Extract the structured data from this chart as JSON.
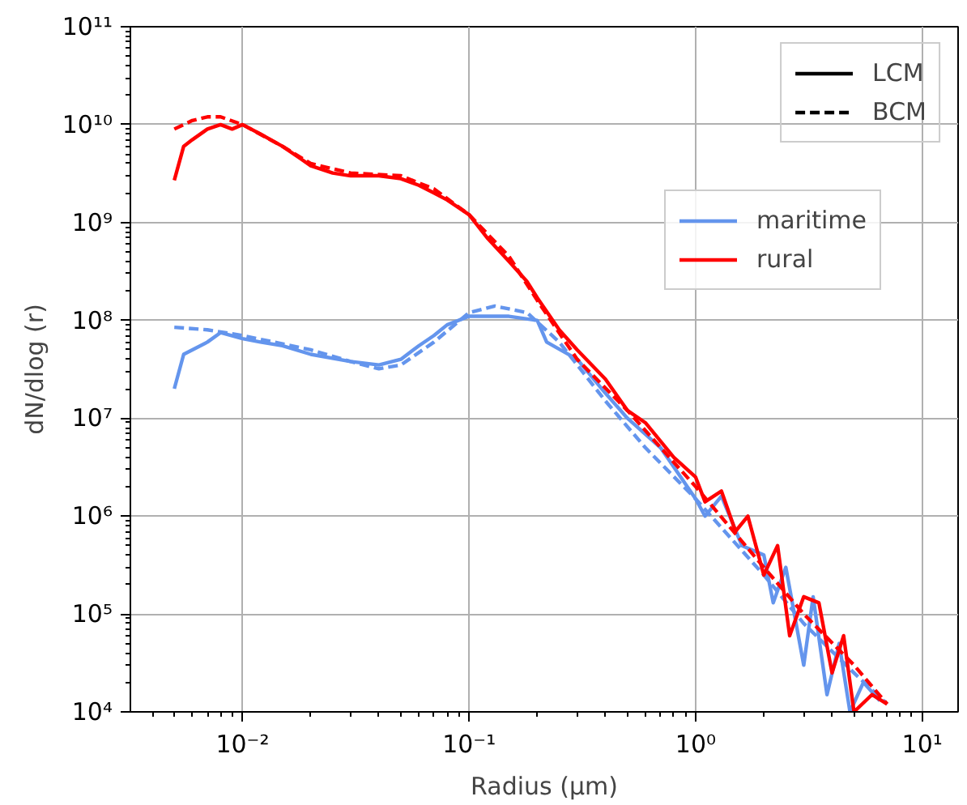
{
  "chart_data": {
    "type": "line",
    "xlabel": "Radius (µm)",
    "ylabel": "dN/dlog (r)",
    "log": "xy",
    "grid": true,
    "legend": "top right",
    "annotations": [
      "LCM",
      "BCM"
    ],
    "xlim": [
      0.0032,
      14.4
    ],
    "ylim": [
      10000.0,
      100000000000.0
    ],
    "xticks": [
      {
        "value": 0.01,
        "label": "10⁻²"
      },
      {
        "value": 0.1,
        "label": "10⁻¹"
      },
      {
        "value": 1,
        "label": "10⁰"
      },
      {
        "value": 10,
        "label": "10¹"
      }
    ],
    "yticks": [
      {
        "value": 10000.0,
        "label": "10⁴"
      },
      {
        "value": 100000.0,
        "label": "10⁵"
      },
      {
        "value": 1000000.0,
        "label": "10⁶"
      },
      {
        "value": 10000000.0,
        "label": "10⁷"
      },
      {
        "value": 100000000.0,
        "label": "10⁸"
      },
      {
        "value": 1000000000.0,
        "label": "10⁹"
      },
      {
        "value": 10000000000.0,
        "label": "10¹⁰"
      },
      {
        "value": 100000000000.0,
        "label": "10¹¹"
      }
    ],
    "series": [
      {
        "name": "maritime",
        "color": "#6495ed",
        "line_style": "solid",
        "x": [
          0.005,
          0.0055,
          0.007,
          0.008,
          0.01,
          0.012,
          0.015,
          0.02,
          0.03,
          0.04,
          0.05,
          0.06,
          0.07,
          0.08,
          0.1,
          0.15,
          0.2,
          0.22,
          0.3,
          0.4,
          0.5,
          0.7,
          1.0,
          1.1,
          1.3,
          1.6,
          2.0,
          2.2,
          2.5,
          3.0,
          3.3,
          3.8,
          4.3,
          4.8,
          5.5,
          6.5
        ],
        "values": [
          20000000.0,
          45000000.0,
          60000000.0,
          75000000.0,
          65000000.0,
          60000000.0,
          55000000.0,
          45000000.0,
          38000000.0,
          35000000.0,
          40000000.0,
          55000000.0,
          70000000.0,
          90000000.0,
          110000000.0,
          110000000.0,
          100000000.0,
          60000000.0,
          40000000.0,
          18000000.0,
          10000000.0,
          5000000.0,
          1500000.0,
          1000000.0,
          1600000.0,
          500000.0,
          400000.0,
          130000.0,
          300000.0,
          30000.0,
          150000.0,
          15000.0,
          50000.0,
          10000.0,
          20000.0,
          13000.0
        ]
      },
      {
        "color": "#6495ed",
        "line_style": "dashed",
        "x": [
          0.005,
          0.007,
          0.01,
          0.02,
          0.03,
          0.04,
          0.05,
          0.07,
          0.1,
          0.13,
          0.18,
          0.25,
          0.4,
          0.6,
          1.0,
          2.0,
          3.0,
          5.0,
          7.0
        ],
        "values": [
          85000000.0,
          80000000.0,
          70000000.0,
          50000000.0,
          38000000.0,
          32000000.0,
          35000000.0,
          60000000.0,
          120000000.0,
          140000000.0,
          120000000.0,
          60000000.0,
          15000000.0,
          5000000.0,
          1500000.0,
          250000.0,
          80000.0,
          25000.0,
          12000.0
        ]
      },
      {
        "name": "rural",
        "color": "#ff0000",
        "line_style": "solid",
        "x": [
          0.005,
          0.0055,
          0.006,
          0.007,
          0.008,
          0.009,
          0.01,
          0.012,
          0.015,
          0.018,
          0.02,
          0.025,
          0.03,
          0.04,
          0.05,
          0.06,
          0.07,
          0.08,
          0.1,
          0.12,
          0.15,
          0.18,
          0.2,
          0.25,
          0.3,
          0.4,
          0.5,
          0.6,
          0.8,
          1.0,
          1.1,
          1.3,
          1.5,
          1.7,
          2.0,
          2.3,
          2.6,
          3.0,
          3.5,
          4.0,
          4.5,
          5.0,
          6.0,
          7.0
        ],
        "values": [
          2700000000.0,
          6000000000.0,
          7000000000.0,
          9000000000.0,
          10000000000.0,
          9000000000.0,
          10000000000.0,
          8000000000.0,
          6000000000.0,
          4500000000.0,
          3800000000.0,
          3200000000.0,
          3000000000.0,
          3000000000.0,
          2800000000.0,
          2400000000.0,
          2000000000.0,
          1700000000.0,
          1200000000.0,
          700000000.0,
          400000000.0,
          250000000.0,
          170000000.0,
          80000000.0,
          50000000.0,
          25000000.0,
          12000000.0,
          9000000.0,
          4000000.0,
          2500000.0,
          1400000.0,
          1800000.0,
          700000.0,
          1000000.0,
          250000.0,
          500000.0,
          60000.0,
          150000.0,
          130000.0,
          25000.0,
          60000.0,
          10000.0,
          15000.0,
          12000.0
        ]
      },
      {
        "color": "#ff0000",
        "line_style": "dashed",
        "x": [
          0.005,
          0.006,
          0.007,
          0.008,
          0.01,
          0.015,
          0.02,
          0.03,
          0.05,
          0.07,
          0.1,
          0.15,
          0.2,
          0.3,
          0.5,
          1.0,
          2.0,
          3.0,
          5.0,
          7.0
        ],
        "values": [
          9000000000.0,
          11000000000.0,
          12000000000.0,
          12000000000.0,
          10000000000.0,
          6000000000.0,
          4000000000.0,
          3200000000.0,
          3000000000.0,
          2200000000.0,
          1200000000.0,
          450000000.0,
          160000000.0,
          40000000.0,
          12000000.0,
          2000000.0,
          300000.0,
          100000.0,
          30000.0,
          12000.0
        ]
      }
    ]
  }
}
